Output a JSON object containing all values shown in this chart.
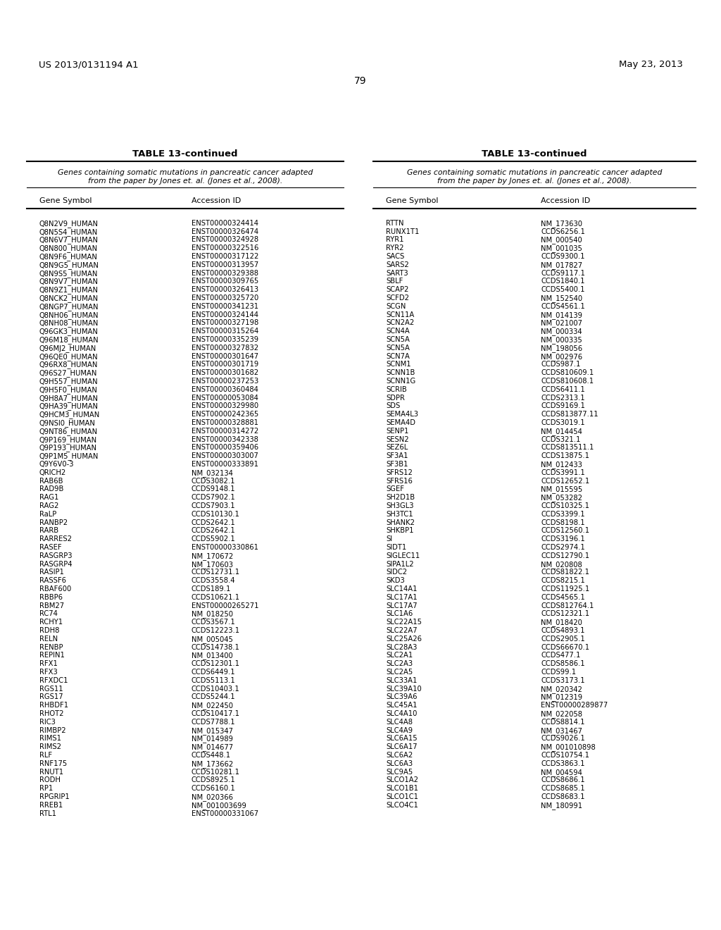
{
  "header_left": "US 2013/0131194 A1",
  "header_right": "May 23, 2013",
  "page_number": "79",
  "table_title": "TABLE 13-continued",
  "table_subtitle_line1": "Genes containing somatic mutations in pancreatic cancer adapted",
  "table_subtitle_line2": "from the paper by Jones et. al. (Jones et al., 2008).",
  "col1_header": "Gene Symbol",
  "col2_header": "Accession ID",
  "col3_header": "Gene Symbol",
  "col4_header": "Accession ID",
  "left_data": [
    [
      "Q8N2V9_HUMAN",
      "ENST00000324414"
    ],
    [
      "Q8N5S4_HUMAN",
      "ENST00000326474"
    ],
    [
      "Q8N6V7_HUMAN",
      "ENST00000324928"
    ],
    [
      "Q8N800_HUMAN",
      "ENST00000322516"
    ],
    [
      "Q8N9F6_HUMAN",
      "ENST00000317122"
    ],
    [
      "Q8N9G5_HUMAN",
      "ENST00000313957"
    ],
    [
      "Q8N9S5_HUMAN",
      "ENST00000329388"
    ],
    [
      "Q8N9V7_HUMAN",
      "ENST00000309765"
    ],
    [
      "Q8N9Z1_HUMAN",
      "ENST00000326413"
    ],
    [
      "Q8NCK2_HUMAN",
      "ENST00000325720"
    ],
    [
      "Q8NGP7_HUMAN",
      "ENST00000341231"
    ],
    [
      "Q8NH06_HUMAN",
      "ENST00000324144"
    ],
    [
      "Q8NH08_HUMAN",
      "ENST00000327198"
    ],
    [
      "Q96GK3_HUMAN",
      "ENST00000315264"
    ],
    [
      "Q96M18_HUMAN",
      "ENST00000335239"
    ],
    [
      "Q96MJ2_HUMAN",
      "ENST00000327832"
    ],
    [
      "Q96QE0_HUMAN",
      "ENST00000301647"
    ],
    [
      "Q96RX8_HUMAN",
      "ENST00000301719"
    ],
    [
      "Q96S27_HUMAN",
      "ENST00000301682"
    ],
    [
      "Q9H557_HUMAN",
      "ENST00000237253"
    ],
    [
      "Q9H5F0_HUMAN",
      "ENST00000360484"
    ],
    [
      "Q9H8A7_HUMAN",
      "ENST00000053084"
    ],
    [
      "Q9HA39_HUMAN",
      "ENST00000329980"
    ],
    [
      "Q9HCM3_HUMAN",
      "ENST00000242365"
    ],
    [
      "Q9NSI0_HUMAN",
      "ENST00000328881"
    ],
    [
      "Q9NT86_HUMAN",
      "ENST00000314272"
    ],
    [
      "Q9P169_HUMAN",
      "ENST00000342338"
    ],
    [
      "Q9P193_HUMAN",
      "ENST00000359406"
    ],
    [
      "Q9P1M5_HUMAN",
      "ENST00000303007"
    ],
    [
      "Q9Y6V0-3",
      "ENST00000333891"
    ],
    [
      "QRICH2",
      "NM_032134"
    ],
    [
      "RAB6B",
      "CCDS3082.1"
    ],
    [
      "RAD9B",
      "CCDS9148.1"
    ],
    [
      "RAG1",
      "CCDS7902.1"
    ],
    [
      "RAG2",
      "CCDS7903.1"
    ],
    [
      "RaLP",
      "CCDS10130.1"
    ],
    [
      "RANBP2",
      "CCDS2642.1"
    ],
    [
      "RARB",
      "CCDS2642.1"
    ],
    [
      "RARRES2",
      "CCDS5902.1"
    ],
    [
      "RASEF",
      "ENST00000330861"
    ],
    [
      "RASGRP3",
      "NM_170672"
    ],
    [
      "RASGRP4",
      "NM_170603"
    ],
    [
      "RASIP1",
      "CCDS12731.1"
    ],
    [
      "RASSF6",
      "CCDS3558.4"
    ],
    [
      "RBAF600",
      "CCDS189.1"
    ],
    [
      "RBBP6",
      "CCDS10621.1"
    ],
    [
      "RBM27",
      "ENST00000265271"
    ],
    [
      "RC74",
      "NM_018250"
    ],
    [
      "RCHY1",
      "CCDS3567.1"
    ],
    [
      "RDH8",
      "CCDS12223.1"
    ],
    [
      "RELN",
      "NM_005045"
    ],
    [
      "RENBP",
      "CCDS14738.1"
    ],
    [
      "REPIN1",
      "NM_013400"
    ],
    [
      "RFX1",
      "CCDS12301.1"
    ],
    [
      "RFX3",
      "CCDS6449.1"
    ],
    [
      "RFXDC1",
      "CCDS5113.1"
    ],
    [
      "RGS11",
      "CCDS10403.1"
    ],
    [
      "RGS17",
      "CCDS5244.1"
    ],
    [
      "RHBDF1",
      "NM_022450"
    ],
    [
      "RHOT2",
      "CCDS10417.1"
    ],
    [
      "RIC3",
      "CCDS7788.1"
    ],
    [
      "RIMBP2",
      "NM_015347"
    ],
    [
      "RIMS1",
      "NM_014989"
    ],
    [
      "RIMS2",
      "NM_014677"
    ],
    [
      "RLF",
      "CCDS448.1"
    ],
    [
      "RNF175",
      "NM_173662"
    ],
    [
      "RNUT1",
      "CCDS10281.1"
    ],
    [
      "RODH",
      "CCDS8925.1"
    ],
    [
      "RP1",
      "CCDS6160.1"
    ],
    [
      "RPGRIP1",
      "NM_020366"
    ],
    [
      "RREB1",
      "NM_001003699"
    ],
    [
      "RTL1",
      "ENST00000331067"
    ]
  ],
  "right_data": [
    [
      "RTTN",
      "NM_173630"
    ],
    [
      "RUNX1T1",
      "CCDS6256.1"
    ],
    [
      "RYR1",
      "NM_000540"
    ],
    [
      "RYR2",
      "NM_001035"
    ],
    [
      "SACS",
      "CCDS9300.1"
    ],
    [
      "SARS2",
      "NM_017827"
    ],
    [
      "SART3",
      "CCDS9117.1"
    ],
    [
      "SBLF",
      "CCDS1840.1"
    ],
    [
      "SCAP2",
      "CCDS5400.1"
    ],
    [
      "SCFD2",
      "NM_152540"
    ],
    [
      "SCGN",
      "CCDS4561.1"
    ],
    [
      "SCN11A",
      "NM_014139"
    ],
    [
      "SCN2A2",
      "NM_021007"
    ],
    [
      "SCN4A",
      "NM_000334"
    ],
    [
      "SCN5A",
      "NM_000335"
    ],
    [
      "SCN5A",
      "NM_198056"
    ],
    [
      "SCN7A",
      "NM_002976"
    ],
    [
      "SCNM1",
      "CCDS987.1"
    ],
    [
      "SCNN1B",
      "CCDS810609.1"
    ],
    [
      "SCNN1G",
      "CCDS810608.1"
    ],
    [
      "SCRIB",
      "CCDS6411.1"
    ],
    [
      "SDPR",
      "CCDS2313.1"
    ],
    [
      "SDS",
      "CCDS9169.1"
    ],
    [
      "SEMA4L3",
      "CCDS813877.11"
    ],
    [
      "SEMA4D",
      "CCDS3019.1"
    ],
    [
      "SENP1",
      "NM_014454"
    ],
    [
      "SESN2",
      "CCDS321.1"
    ],
    [
      "SEZ6L",
      "CCDS813511.1"
    ],
    [
      "SF3A1",
      "CCDS13875.1"
    ],
    [
      "SF3B1",
      "NM_012433"
    ],
    [
      "SFRS12",
      "CCDS3991.1"
    ],
    [
      "SFRS16",
      "CCDS12652.1"
    ],
    [
      "SGEF",
      "NM_015595"
    ],
    [
      "SH2D1B",
      "NM_053282"
    ],
    [
      "SH3GL3",
      "CCDS10325.1"
    ],
    [
      "SH3TC1",
      "CCDS3399.1"
    ],
    [
      "SHANK2",
      "CCDS8198.1"
    ],
    [
      "SHKBP1",
      "CCDS12560.1"
    ],
    [
      "SI",
      "CCDS3196.1"
    ],
    [
      "SIDT1",
      "CCDS2974.1"
    ],
    [
      "SIGLEC11",
      "CCDS12790.1"
    ],
    [
      "SIPA1L2",
      "NM_020808"
    ],
    [
      "SIDC2",
      "CCDS81822.1"
    ],
    [
      "SKD3",
      "CCDS8215.1"
    ],
    [
      "SLC14A1",
      "CCDS11925.1"
    ],
    [
      "SLC17A1",
      "CCDS4565.1"
    ],
    [
      "SLC17A7",
      "CCDS812764.1"
    ],
    [
      "SLC1A6",
      "CCDS12321.1"
    ],
    [
      "SLC22A15",
      "NM_018420"
    ],
    [
      "SLC22A7",
      "CCDS4893.1"
    ],
    [
      "SLC25A26",
      "CCDS2905.1"
    ],
    [
      "SLC28A3",
      "CCDS66670.1"
    ],
    [
      "SLC2A1",
      "CCDS477.1"
    ],
    [
      "SLC2A3",
      "CCDS8586.1"
    ],
    [
      "SLC2A5",
      "CCDS99.1"
    ],
    [
      "SLC33A1",
      "CCDS3173.1"
    ],
    [
      "SLC39A10",
      "NM_020342"
    ],
    [
      "SLC39A6",
      "NM_012319"
    ],
    [
      "SLC45A1",
      "ENST00000289877"
    ],
    [
      "SLC4A10",
      "NM_022058"
    ],
    [
      "SLC4A8",
      "CCDS8814.1"
    ],
    [
      "SLC4A9",
      "NM_031467"
    ],
    [
      "SLC6A15",
      "CCDS9026.1"
    ],
    [
      "SLC6A17",
      "NM_001010898"
    ],
    [
      "SLC6A2",
      "CCDS10754.1"
    ],
    [
      "SLC6A3",
      "CCDS3863.1"
    ],
    [
      "SLC9A5",
      "NM_004594"
    ],
    [
      "SLCO1A2",
      "CCDS8686.1"
    ],
    [
      "SLCO1B1",
      "CCDS8685.1"
    ],
    [
      "SLCO1C1",
      "CCDS8683.1"
    ],
    [
      "SLCO4C1",
      "NM_180991"
    ]
  ],
  "background_color": "#ffffff",
  "text_color": "#000000"
}
